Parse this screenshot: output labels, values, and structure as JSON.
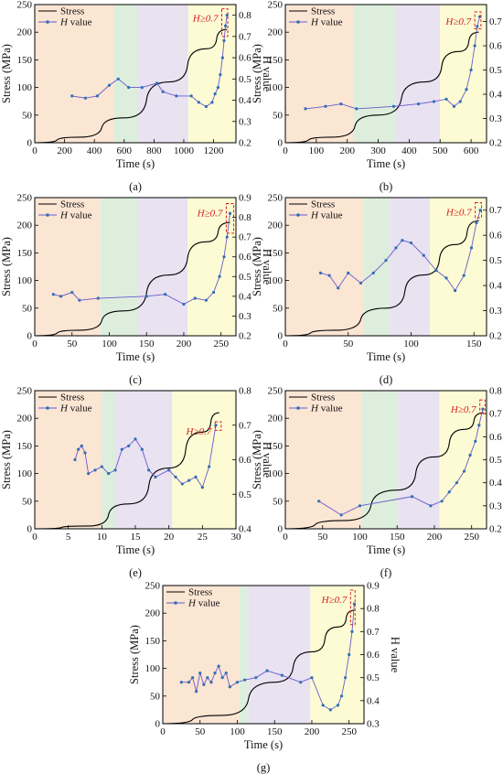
{
  "colors": {
    "stress": "#000000",
    "h_value": "#6a5acd",
    "h_marker": "#2f6fb5",
    "stage1": "#fbe5d3",
    "stage2": "#deeedd",
    "stage3": "#e8e2f1",
    "stage4": "#fcfbd4",
    "annotation": "#d62020"
  },
  "chart_data": [
    {
      "type": "line",
      "panel_label": "(a)",
      "xlabel": "Time (s)",
      "ylabel_left": "Stress (MPa)",
      "ylabel_right": "H value",
      "xlim": [
        0,
        1350
      ],
      "xticks": [
        0,
        200,
        400,
        600,
        800,
        1000,
        1200
      ],
      "ylim_left": [
        0,
        250
      ],
      "yticks_left": [
        0,
        50,
        100,
        150,
        200,
        250
      ],
      "ylim_right": [
        0.2,
        0.85
      ],
      "yticks_right": [
        0.2,
        0.3,
        0.4,
        0.5,
        0.6,
        0.7,
        0.8
      ],
      "stages": [
        [
          0,
          530
        ],
        [
          530,
          690
        ],
        [
          690,
          1030
        ],
        [
          1030,
          1350
        ]
      ],
      "annotation": "H≥0.7",
      "threshold_box": [
        1255,
        1295,
        0.7,
        0.83
      ],
      "stress": [
        [
          0,
          0
        ],
        [
          300,
          10
        ],
        [
          600,
          45
        ],
        [
          900,
          110
        ],
        [
          1150,
          170
        ],
        [
          1290,
          205
        ]
      ],
      "h_value": [
        [
          250,
          0.42
        ],
        [
          340,
          0.41
        ],
        [
          420,
          0.42
        ],
        [
          500,
          0.47
        ],
        [
          560,
          0.5
        ],
        [
          630,
          0.46
        ],
        [
          720,
          0.46
        ],
        [
          820,
          0.48
        ],
        [
          860,
          0.44
        ],
        [
          950,
          0.42
        ],
        [
          1050,
          0.42
        ],
        [
          1100,
          0.39
        ],
        [
          1150,
          0.37
        ],
        [
          1190,
          0.39
        ],
        [
          1210,
          0.43
        ],
        [
          1230,
          0.46
        ],
        [
          1245,
          0.52
        ],
        [
          1260,
          0.6
        ],
        [
          1270,
          0.68
        ],
        [
          1280,
          0.75
        ],
        [
          1290,
          0.8
        ]
      ]
    },
    {
      "type": "line",
      "panel_label": "(b)",
      "xlabel": "Time (s)",
      "ylabel_left": "Stress (MPa)",
      "ylabel_right": "H value",
      "xlim": [
        0,
        650
      ],
      "xticks": [
        0,
        100,
        200,
        300,
        400,
        500,
        600
      ],
      "ylim_left": [
        0,
        250
      ],
      "yticks_left": [
        0,
        50,
        100,
        150,
        200,
        250
      ],
      "ylim_right": [
        0.2,
        0.77
      ],
      "yticks_right": [
        0.2,
        0.3,
        0.4,
        0.5,
        0.6,
        0.7
      ],
      "stages": [
        [
          0,
          222
        ],
        [
          222,
          355
        ],
        [
          355,
          500
        ],
        [
          500,
          650
        ]
      ],
      "annotation": "H≥0.7",
      "threshold_box": [
        612,
        632,
        0.67,
        0.74
      ],
      "stress": [
        [
          0,
          0
        ],
        [
          150,
          10
        ],
        [
          300,
          50
        ],
        [
          450,
          110
        ],
        [
          560,
          165
        ],
        [
          625,
          200
        ]
      ],
      "h_value": [
        [
          65,
          0.34
        ],
        [
          130,
          0.35
        ],
        [
          180,
          0.36
        ],
        [
          230,
          0.34
        ],
        [
          350,
          0.35
        ],
        [
          430,
          0.36
        ],
        [
          480,
          0.37
        ],
        [
          520,
          0.38
        ],
        [
          545,
          0.35
        ],
        [
          565,
          0.37
        ],
        [
          585,
          0.42
        ],
        [
          600,
          0.5
        ],
        [
          612,
          0.6
        ],
        [
          620,
          0.68
        ],
        [
          628,
          0.72
        ]
      ]
    },
    {
      "type": "line",
      "panel_label": "(c)",
      "xlabel": "Time (s)",
      "ylabel_left": "Stress (MPa)",
      "ylabel_right": "H value",
      "xlim": [
        0,
        270
      ],
      "xticks": [
        0,
        50,
        100,
        150,
        200,
        250
      ],
      "ylim_left": [
        0,
        250
      ],
      "yticks_left": [
        0,
        50,
        100,
        150,
        200,
        250
      ],
      "ylim_right": [
        0.2,
        0.9
      ],
      "yticks_right": [
        0.2,
        0.3,
        0.4,
        0.5,
        0.6,
        0.7,
        0.8,
        0.9
      ],
      "stages": [
        [
          0,
          88
        ],
        [
          88,
          138
        ],
        [
          138,
          205
        ],
        [
          205,
          270
        ]
      ],
      "annotation": "H≥0.7",
      "threshold_box": [
        257,
        267,
        0.72,
        0.87
      ],
      "stress": [
        [
          0,
          0
        ],
        [
          60,
          10
        ],
        [
          120,
          45
        ],
        [
          180,
          110
        ],
        [
          230,
          170
        ],
        [
          262,
          205
        ]
      ],
      "h_value": [
        [
          25,
          0.41
        ],
        [
          35,
          0.4
        ],
        [
          50,
          0.42
        ],
        [
          60,
          0.38
        ],
        [
          85,
          0.39
        ],
        [
          150,
          0.4
        ],
        [
          175,
          0.41
        ],
        [
          200,
          0.36
        ],
        [
          215,
          0.39
        ],
        [
          230,
          0.38
        ],
        [
          240,
          0.42
        ],
        [
          248,
          0.5
        ],
        [
          254,
          0.6
        ],
        [
          258,
          0.7
        ],
        [
          262,
          0.82
        ]
      ]
    },
    {
      "type": "line",
      "panel_label": "(d)",
      "xlabel": "Time (s)",
      "ylabel_left": "Stress (MPa)",
      "ylabel_right": "H value",
      "xlim": [
        0,
        160
      ],
      "xticks": [
        0,
        50,
        100,
        150
      ],
      "ylim_left": [
        0,
        250
      ],
      "yticks_left": [
        0,
        50,
        100,
        150,
        200,
        250
      ],
      "ylim_right": [
        0.2,
        0.75
      ],
      "yticks_right": [
        0.2,
        0.3,
        0.4,
        0.5,
        0.6,
        0.7
      ],
      "stages": [
        [
          0,
          62
        ],
        [
          62,
          83
        ],
        [
          83,
          115
        ],
        [
          115,
          160
        ]
      ],
      "annotation": "H≥0.7",
      "threshold_box": [
        151,
        156,
        0.67,
        0.73
      ],
      "stress": [
        [
          0,
          0
        ],
        [
          40,
          10
        ],
        [
          80,
          50
        ],
        [
          110,
          110
        ],
        [
          135,
          165
        ],
        [
          154,
          208
        ]
      ],
      "h_value": [
        [
          28,
          0.45
        ],
        [
          35,
          0.44
        ],
        [
          42,
          0.39
        ],
        [
          50,
          0.45
        ],
        [
          60,
          0.41
        ],
        [
          70,
          0.45
        ],
        [
          80,
          0.5
        ],
        [
          88,
          0.55
        ],
        [
          93,
          0.58
        ],
        [
          100,
          0.57
        ],
        [
          110,
          0.52
        ],
        [
          120,
          0.46
        ],
        [
          128,
          0.43
        ],
        [
          135,
          0.38
        ],
        [
          142,
          0.44
        ],
        [
          148,
          0.55
        ],
        [
          152,
          0.65
        ],
        [
          155,
          0.7
        ]
      ]
    },
    {
      "type": "line",
      "panel_label": "(e)",
      "xlabel": "Time (s)",
      "ylabel_left": "Stress (MPa)",
      "ylabel_right": "H value",
      "xlim": [
        0,
        30
      ],
      "xticks": [
        0,
        5,
        10,
        15,
        20,
        25,
        30
      ],
      "ylim_left": [
        0,
        250
      ],
      "yticks_left": [
        0,
        50,
        100,
        150,
        200,
        250
      ],
      "ylim_right": [
        0.4,
        0.8
      ],
      "yticks_right": [
        0.4,
        0.5,
        0.6,
        0.7,
        0.8
      ],
      "stages": [
        [
          0,
          10
        ],
        [
          10,
          12
        ],
        [
          12,
          20.5
        ],
        [
          20.5,
          30
        ]
      ],
      "annotation": "H≥0.7",
      "threshold_box": [
        26.9,
        27.8,
        0.685,
        0.71
      ],
      "stress": [
        [
          0,
          0
        ],
        [
          8,
          5
        ],
        [
          14,
          45
        ],
        [
          20,
          110
        ],
        [
          25,
          175
        ],
        [
          27.5,
          210
        ]
      ],
      "h_value": [
        [
          6,
          0.6
        ],
        [
          6.5,
          0.63
        ],
        [
          7,
          0.64
        ],
        [
          7.5,
          0.62
        ],
        [
          8,
          0.56
        ],
        [
          9,
          0.57
        ],
        [
          10,
          0.58
        ],
        [
          11,
          0.56
        ],
        [
          12,
          0.57
        ],
        [
          13,
          0.63
        ],
        [
          14,
          0.64
        ],
        [
          15,
          0.66
        ],
        [
          16,
          0.63
        ],
        [
          17,
          0.57
        ],
        [
          18,
          0.55
        ],
        [
          20,
          0.57
        ],
        [
          21,
          0.55
        ],
        [
          22,
          0.53
        ],
        [
          23,
          0.54
        ],
        [
          24,
          0.55
        ],
        [
          25,
          0.52
        ],
        [
          26,
          0.58
        ],
        [
          27,
          0.7
        ]
      ]
    },
    {
      "type": "line",
      "panel_label": "(f)",
      "xlabel": "Time (s)",
      "ylabel_left": "Stress (MPa)",
      "ylabel_right": "H value",
      "xlim": [
        0,
        270
      ],
      "xticks": [
        0,
        50,
        100,
        150,
        200,
        250
      ],
      "ylim_left": [
        0,
        250
      ],
      "yticks_left": [
        0,
        50,
        100,
        150,
        200,
        250
      ],
      "ylim_right": [
        0.2,
        0.8
      ],
      "yticks_right": [
        0.2,
        0.3,
        0.4,
        0.5,
        0.6,
        0.7,
        0.8
      ],
      "stages": [
        [
          0,
          103
        ],
        [
          103,
          150
        ],
        [
          150,
          207
        ],
        [
          207,
          270
        ]
      ],
      "annotation": "H≥0.7",
      "threshold_box": [
        261,
        268,
        0.7,
        0.76
      ],
      "stress": [
        [
          0,
          0
        ],
        [
          80,
          15
        ],
        [
          150,
          70
        ],
        [
          200,
          130
        ],
        [
          240,
          180
        ],
        [
          266,
          210
        ]
      ],
      "h_value": [
        [
          45,
          0.32
        ],
        [
          75,
          0.26
        ],
        [
          100,
          0.3
        ],
        [
          170,
          0.34
        ],
        [
          195,
          0.3
        ],
        [
          210,
          0.32
        ],
        [
          220,
          0.36
        ],
        [
          230,
          0.4
        ],
        [
          240,
          0.45
        ],
        [
          248,
          0.52
        ],
        [
          255,
          0.58
        ],
        [
          260,
          0.65
        ],
        [
          265,
          0.72
        ]
      ]
    },
    {
      "type": "line",
      "panel_label": "(g)",
      "xlabel": "Time (s)",
      "ylabel_left": "Stress (MPa)",
      "ylabel_right": "H value",
      "xlim": [
        0,
        270
      ],
      "xticks": [
        0,
        50,
        100,
        150,
        200,
        250
      ],
      "ylim_left": [
        0,
        250
      ],
      "yticks_left": [
        0,
        50,
        100,
        150,
        200,
        250
      ],
      "ylim_right": [
        0.3,
        0.9
      ],
      "yticks_right": [
        0.3,
        0.4,
        0.5,
        0.6,
        0.7,
        0.8,
        0.9
      ],
      "stages": [
        [
          0,
          103
        ],
        [
          103,
          115
        ],
        [
          115,
          198
        ],
        [
          198,
          270
        ]
      ],
      "annotation": "H≥0.7",
      "threshold_box": [
        252,
        258,
        0.73,
        0.88
      ],
      "stress": [
        [
          0,
          0
        ],
        [
          80,
          15
        ],
        [
          150,
          75
        ],
        [
          200,
          130
        ],
        [
          235,
          175
        ],
        [
          257,
          205
        ]
      ],
      "h_value": [
        [
          25,
          0.48
        ],
        [
          35,
          0.48
        ],
        [
          40,
          0.5
        ],
        [
          45,
          0.44
        ],
        [
          50,
          0.52
        ],
        [
          55,
          0.47
        ],
        [
          60,
          0.5
        ],
        [
          65,
          0.48
        ],
        [
          70,
          0.52
        ],
        [
          75,
          0.55
        ],
        [
          80,
          0.5
        ],
        [
          85,
          0.52
        ],
        [
          90,
          0.46
        ],
        [
          100,
          0.48
        ],
        [
          110,
          0.49
        ],
        [
          125,
          0.5
        ],
        [
          140,
          0.53
        ],
        [
          160,
          0.51
        ],
        [
          185,
          0.48
        ],
        [
          200,
          0.5
        ],
        [
          215,
          0.38
        ],
        [
          225,
          0.36
        ],
        [
          235,
          0.38
        ],
        [
          240,
          0.42
        ],
        [
          245,
          0.5
        ],
        [
          250,
          0.6
        ],
        [
          254,
          0.7
        ],
        [
          257,
          0.82
        ]
      ]
    }
  ],
  "legend": {
    "stress_label": "Stress",
    "h_label_prefix": "H",
    "h_label_suffix": " value"
  }
}
